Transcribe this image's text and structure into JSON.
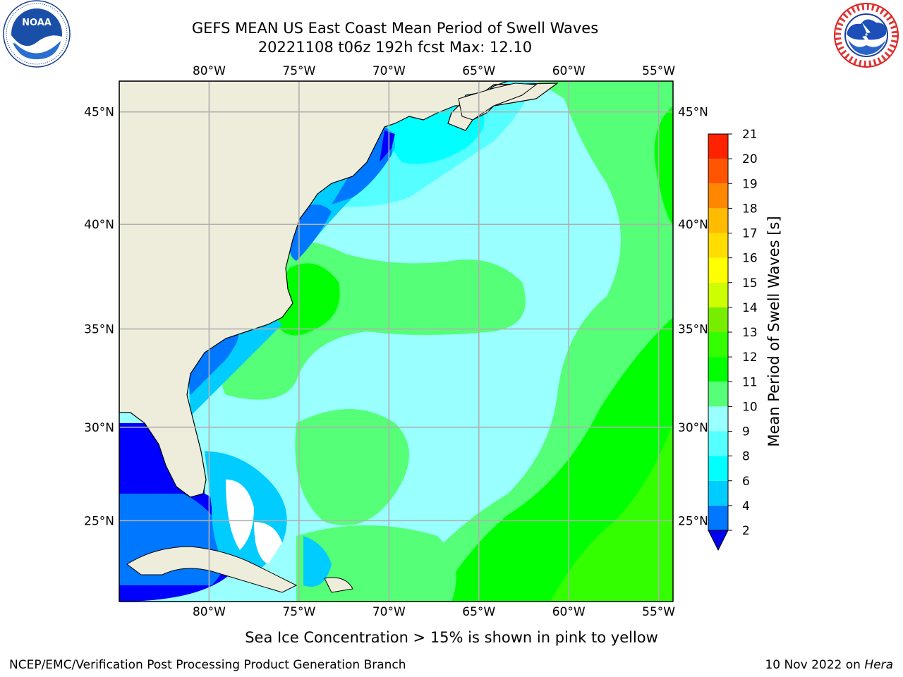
{
  "title": {
    "line1": "GEFS MEAN US East Coast Mean Period of Swell Waves",
    "line2": "20221108 t06z 192h fcst   Max: 12.10"
  },
  "map": {
    "lon_labels": [
      "80°W",
      "75°W",
      "70°W",
      "65°W",
      "60°W",
      "55°W"
    ],
    "lat_labels": [
      "45°N",
      "40°N",
      "35°N",
      "30°N",
      "25°N"
    ],
    "lon_values": [
      -80,
      -75,
      -70,
      -65,
      -60,
      -55
    ],
    "lat_values": [
      45,
      40,
      35,
      30,
      25
    ],
    "lon_range": [
      -85,
      -54.2
    ],
    "lat_range": [
      20.5,
      46.3
    ],
    "land_color": "#eeeddc",
    "grid_color": "#b0b0b0"
  },
  "colorbar": {
    "label": "Mean Period of Swell Waves [s]",
    "ticks": [
      "2",
      "4",
      "6",
      "8",
      "9",
      "10",
      "11",
      "12",
      "13",
      "14",
      "15",
      "16",
      "17",
      "18",
      "19",
      "20",
      "21"
    ],
    "colors": [
      "#0000ff",
      "#0077ff",
      "#00ccff",
      "#00ffff",
      "#55ffff",
      "#99ffff",
      "#55ff77",
      "#00ff00",
      "#33ff00",
      "#77ee00",
      "#ccff00",
      "#ffff00",
      "#ffdd00",
      "#ffbb00",
      "#ff8800",
      "#ff5500",
      "#ff2200",
      "#ff0000"
    ],
    "extend_color": "#0000ee"
  },
  "note": "Sea Ice Concentration > 15% is shown in pink to yellow",
  "footer": {
    "credit": "NCEP/EMC/Verification Post Processing Product Generation Branch",
    "date": "10 Nov 2022 on ",
    "host": "Hera"
  },
  "logos": {
    "left": "noaa-logo",
    "right": "national-weather-service-logo"
  }
}
